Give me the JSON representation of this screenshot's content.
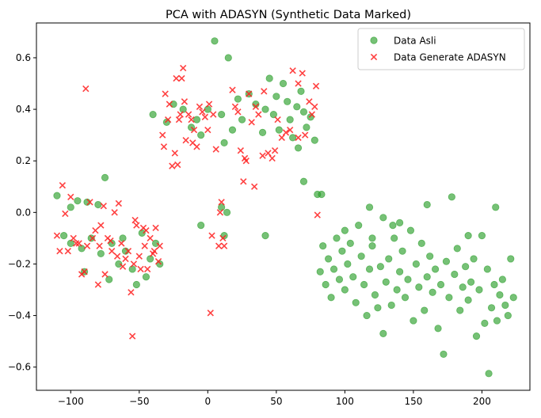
{
  "chart_data": {
    "type": "scatter",
    "title": "PCA with ADASYN (Synthetic Data Marked)",
    "xlabel": "",
    "ylabel": "",
    "xlim": [
      -125,
      235
    ],
    "ylim": [
      -0.69,
      0.735
    ],
    "x_ticks": [
      -100,
      -50,
      0,
      50,
      100,
      150,
      200
    ],
    "y_ticks": [
      -0.6,
      -0.4,
      -0.2,
      0.0,
      0.2,
      0.4,
      0.6
    ],
    "x_tick_labels": [
      "−100",
      "−50",
      "0",
      "50",
      "100",
      "150",
      "200"
    ],
    "y_tick_labels": [
      "−0.6",
      "−0.4",
      "−0.2",
      "0.0",
      "0.2",
      "0.4",
      "0.6"
    ],
    "grid": false,
    "legend_position": "top-right",
    "series": [
      {
        "name": "Data Asli",
        "marker": "circle",
        "color": "#2ca02c",
        "alpha": 0.65,
        "points": [
          [
            -110,
            0.065
          ],
          [
            -100,
            0.02
          ],
          [
            -95,
            0.045
          ],
          [
            -75,
            0.135
          ],
          [
            -80,
            0.03
          ],
          [
            -88,
            0.04
          ],
          [
            -105,
            -0.09
          ],
          [
            -100,
            -0.12
          ],
          [
            -92,
            -0.14
          ],
          [
            -85,
            -0.1
          ],
          [
            -78,
            -0.16
          ],
          [
            -70,
            -0.12
          ],
          [
            -65,
            -0.2
          ],
          [
            -60,
            -0.15
          ],
          [
            -55,
            -0.22
          ],
          [
            -48,
            -0.08
          ],
          [
            -42,
            -0.18
          ],
          [
            -38,
            -0.12
          ],
          [
            -35,
            -0.2
          ],
          [
            -52,
            -0.28
          ],
          [
            -45,
            -0.25
          ],
          [
            -90,
            -0.23
          ],
          [
            -72,
            -0.26
          ],
          [
            -62,
            -0.1
          ],
          [
            -40,
            0.38
          ],
          [
            -30,
            0.35
          ],
          [
            -25,
            0.42
          ],
          [
            -18,
            0.4
          ],
          [
            -12,
            0.33
          ],
          [
            -8,
            0.36
          ],
          [
            -5,
            0.3
          ],
          [
            0,
            0.4
          ],
          [
            5,
            0.665
          ],
          [
            10,
            0.38
          ],
          [
            12,
            0.27
          ],
          [
            15,
            0.6
          ],
          [
            18,
            0.32
          ],
          [
            22,
            0.44
          ],
          [
            25,
            0.36
          ],
          [
            30,
            0.46
          ],
          [
            35,
            0.42
          ],
          [
            40,
            0.31
          ],
          [
            42,
            0.4
          ],
          [
            45,
            0.52
          ],
          [
            48,
            0.38
          ],
          [
            50,
            0.45
          ],
          [
            52,
            0.32
          ],
          [
            55,
            0.5
          ],
          [
            58,
            0.43
          ],
          [
            60,
            0.36
          ],
          [
            62,
            0.29
          ],
          [
            65,
            0.41
          ],
          [
            66,
            0.25
          ],
          [
            68,
            0.47
          ],
          [
            70,
            0.39
          ],
          [
            72,
            0.33
          ],
          [
            75,
            0.37
          ],
          [
            78,
            0.28
          ],
          [
            70,
            0.12
          ],
          [
            80,
            0.07
          ],
          [
            83,
            0.07
          ],
          [
            42,
            -0.09
          ],
          [
            12,
            -0.09
          ],
          [
            -5,
            -0.05
          ],
          [
            10,
            0.02
          ],
          [
            14,
            0.0
          ],
          [
            82,
            -0.23
          ],
          [
            84,
            -0.13
          ],
          [
            86,
            -0.28
          ],
          [
            88,
            -0.18
          ],
          [
            90,
            -0.33
          ],
          [
            92,
            -0.22
          ],
          [
            94,
            -0.1
          ],
          [
            96,
            -0.26
          ],
          [
            98,
            -0.15
          ],
          [
            100,
            -0.3
          ],
          [
            102,
            -0.2
          ],
          [
            104,
            -0.12
          ],
          [
            106,
            -0.25
          ],
          [
            108,
            -0.35
          ],
          [
            110,
            -0.05
          ],
          [
            112,
            -0.17
          ],
          [
            114,
            -0.28
          ],
          [
            116,
            -0.4
          ],
          [
            118,
            -0.22
          ],
          [
            120,
            -0.13
          ],
          [
            122,
            -0.32
          ],
          [
            124,
            -0.37
          ],
          [
            126,
            -0.21
          ],
          [
            128,
            -0.47
          ],
          [
            130,
            -0.27
          ],
          [
            132,
            -0.18
          ],
          [
            134,
            -0.36
          ],
          [
            136,
            -0.1
          ],
          [
            138,
            -0.3
          ],
          [
            140,
            -0.23
          ],
          [
            142,
            -0.15
          ],
          [
            144,
            -0.33
          ],
          [
            146,
            -0.26
          ],
          [
            148,
            -0.07
          ],
          [
            150,
            -0.42
          ],
          [
            152,
            -0.2
          ],
          [
            154,
            -0.29
          ],
          [
            156,
            -0.12
          ],
          [
            158,
            -0.38
          ],
          [
            160,
            -0.25
          ],
          [
            162,
            -0.17
          ],
          [
            164,
            -0.31
          ],
          [
            166,
            -0.22
          ],
          [
            168,
            -0.45
          ],
          [
            170,
            -0.28
          ],
          [
            172,
            -0.55
          ],
          [
            174,
            -0.19
          ],
          [
            176,
            -0.33
          ],
          [
            178,
            0.06
          ],
          [
            180,
            -0.24
          ],
          [
            182,
            -0.14
          ],
          [
            184,
            -0.38
          ],
          [
            186,
            -0.29
          ],
          [
            188,
            -0.21
          ],
          [
            190,
            -0.34
          ],
          [
            192,
            -0.27
          ],
          [
            194,
            -0.18
          ],
          [
            196,
            -0.48
          ],
          [
            198,
            -0.3
          ],
          [
            200,
            -0.09
          ],
          [
            202,
            -0.43
          ],
          [
            204,
            -0.22
          ],
          [
            205,
            -0.625
          ],
          [
            207,
            -0.37
          ],
          [
            209,
            -0.28
          ],
          [
            211,
            -0.42
          ],
          [
            213,
            -0.32
          ],
          [
            215,
            -0.26
          ],
          [
            217,
            -0.36
          ],
          [
            219,
            -0.4
          ],
          [
            221,
            -0.18
          ],
          [
            223,
            -0.33
          ],
          [
            118,
            0.02
          ],
          [
            128,
            -0.02
          ],
          [
            140,
            -0.04
          ],
          [
            160,
            0.03
          ],
          [
            190,
            -0.09
          ],
          [
            210,
            0.02
          ],
          [
            100,
            -0.07
          ],
          [
            120,
            -0.1
          ],
          [
            135,
            -0.05
          ]
        ]
      },
      {
        "name": "Data Generate ADASYN",
        "marker": "x",
        "color": "#ff2020",
        "alpha": 0.85,
        "points": [
          [
            -110,
            -0.09
          ],
          [
            -108,
            -0.15
          ],
          [
            -106,
            0.105
          ],
          [
            -104,
            -0.005
          ],
          [
            -102,
            -0.15
          ],
          [
            -100,
            0.06
          ],
          [
            -98,
            -0.1
          ],
          [
            -96,
            -0.12
          ],
          [
            -94,
            -0.12
          ],
          [
            -92,
            -0.24
          ],
          [
            -90,
            -0.23
          ],
          [
            -89,
            0.48
          ],
          [
            -88,
            -0.13
          ],
          [
            -86,
            0.04
          ],
          [
            -84,
            -0.1
          ],
          [
            -82,
            -0.07
          ],
          [
            -80,
            -0.28
          ],
          [
            -79,
            -0.13
          ],
          [
            -78,
            -0.05
          ],
          [
            -76,
            0.025
          ],
          [
            -75,
            -0.24
          ],
          [
            -73,
            -0.1
          ],
          [
            -71,
            -0.11
          ],
          [
            -70,
            -0.15
          ],
          [
            -68,
            0.0
          ],
          [
            -66,
            -0.17
          ],
          [
            -65,
            0.035
          ],
          [
            -63,
            -0.12
          ],
          [
            -62,
            -0.21
          ],
          [
            -60,
            -0.18
          ],
          [
            -58,
            -0.15
          ],
          [
            -56,
            -0.31
          ],
          [
            -55,
            -0.48
          ],
          [
            -54,
            -0.2
          ],
          [
            -53,
            -0.03
          ],
          [
            -52,
            -0.05
          ],
          [
            -50,
            -0.17
          ],
          [
            -49,
            -0.22
          ],
          [
            -47,
            -0.06
          ],
          [
            -46,
            -0.13
          ],
          [
            -45,
            -0.07
          ],
          [
            -44,
            -0.22
          ],
          [
            -42,
            -0.1
          ],
          [
            -40,
            -0.16
          ],
          [
            -39,
            -0.15
          ],
          [
            -38,
            -0.06
          ],
          [
            -36,
            -0.19
          ],
          [
            -35,
            -0.13
          ],
          [
            -33,
            0.3
          ],
          [
            -32,
            0.255
          ],
          [
            -31,
            0.46
          ],
          [
            -29,
            0.36
          ],
          [
            -28,
            0.42
          ],
          [
            -26,
            0.18
          ],
          [
            -24,
            0.23
          ],
          [
            -23,
            0.52
          ],
          [
            -22,
            0.185
          ],
          [
            -21,
            0.36
          ],
          [
            -20,
            0.38
          ],
          [
            -19,
            0.52
          ],
          [
            -18,
            0.56
          ],
          [
            -17,
            0.43
          ],
          [
            -16,
            0.28
          ],
          [
            -14,
            0.38
          ],
          [
            -12,
            0.36
          ],
          [
            -11,
            0.27
          ],
          [
            -10,
            0.32
          ],
          [
            -8,
            0.255
          ],
          [
            -6,
            0.41
          ],
          [
            -4,
            0.39
          ],
          [
            -2,
            0.37
          ],
          [
            0,
            0.32
          ],
          [
            1,
            0.42
          ],
          [
            2,
            -0.39
          ],
          [
            3,
            -0.09
          ],
          [
            4,
            0.38
          ],
          [
            6,
            0.245
          ],
          [
            8,
            -0.13
          ],
          [
            9,
            0.0
          ],
          [
            10,
            0.04
          ],
          [
            11,
            -0.1
          ],
          [
            12,
            -0.13
          ],
          [
            18,
            0.475
          ],
          [
            20,
            0.41
          ],
          [
            22,
            0.39
          ],
          [
            24,
            0.24
          ],
          [
            26,
            0.12
          ],
          [
            27,
            0.21
          ],
          [
            28,
            0.2
          ],
          [
            30,
            0.46
          ],
          [
            32,
            0.35
          ],
          [
            34,
            0.1
          ],
          [
            35,
            0.41
          ],
          [
            37,
            0.38
          ],
          [
            40,
            0.22
          ],
          [
            41,
            0.47
          ],
          [
            44,
            0.23
          ],
          [
            47,
            0.21
          ],
          [
            49,
            0.24
          ],
          [
            51,
            0.36
          ],
          [
            54,
            0.29
          ],
          [
            57,
            0.31
          ],
          [
            60,
            0.32
          ],
          [
            62,
            0.55
          ],
          [
            66,
            0.29
          ],
          [
            69,
            0.54
          ],
          [
            71,
            0.3
          ],
          [
            74,
            0.43
          ],
          [
            76,
            0.38
          ],
          [
            78,
            0.41
          ],
          [
            80,
            -0.01
          ],
          [
            79,
            0.49
          ],
          [
            66,
            0.5
          ]
        ]
      }
    ]
  }
}
